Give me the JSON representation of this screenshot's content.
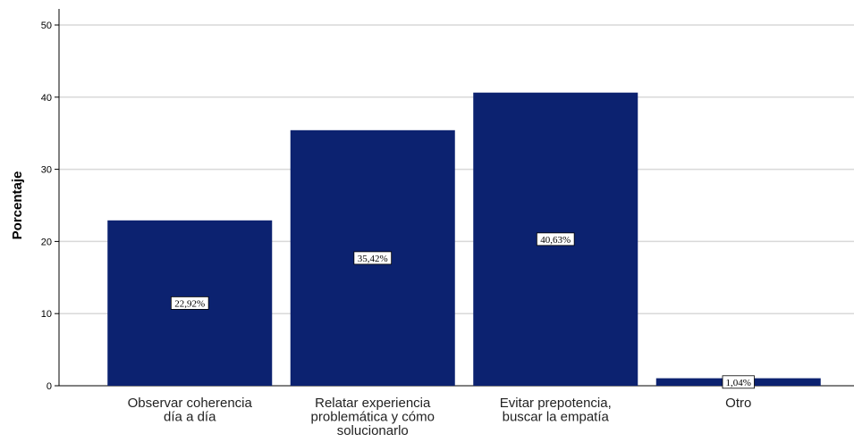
{
  "chart_data": {
    "type": "bar",
    "ylabel": "Porcentaje",
    "xlabel": "",
    "ylim": [
      0,
      50
    ],
    "yticks": [
      0,
      10,
      20,
      30,
      40,
      50
    ],
    "grid": true,
    "bar_color": "#0c2270",
    "categories": [
      [
        "Observar coherencia",
        "día a día"
      ],
      [
        "Relatar experiencia",
        "problemática y cómo",
        "solucionarlo"
      ],
      [
        "Evitar prepotencia,",
        "buscar la empatía"
      ],
      [
        "Otro"
      ]
    ],
    "values": [
      22.92,
      35.42,
      40.63,
      1.04
    ],
    "data_labels": [
      "22,92%",
      "35,42%",
      "40,63%",
      "1,04%"
    ]
  }
}
